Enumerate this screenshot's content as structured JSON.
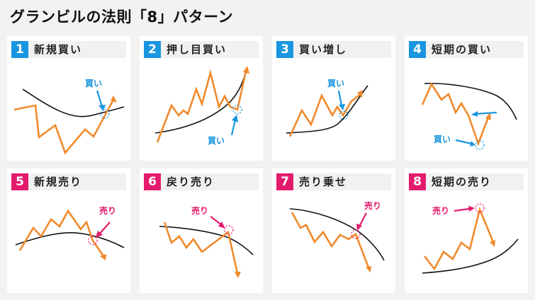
{
  "title": "グランビルの法則「8」パターン",
  "colors": {
    "buy": "#1a96e0",
    "sell": "#e31b6d",
    "price": "#f08a2c",
    "ma": "#111111"
  },
  "patterns": [
    {
      "number": "1",
      "label": "新規買い",
      "kind": "buy",
      "annotation": "買い"
    },
    {
      "number": "2",
      "label": "押し目買い",
      "kind": "buy",
      "annotation": "買い"
    },
    {
      "number": "3",
      "label": "買い増し",
      "kind": "buy",
      "annotation": "買い"
    },
    {
      "number": "4",
      "label": "短期の買い",
      "kind": "buy",
      "annotation": "買い"
    },
    {
      "number": "5",
      "label": "新規売り",
      "kind": "sell",
      "annotation": "売り"
    },
    {
      "number": "6",
      "label": "戻り売り",
      "kind": "sell",
      "annotation": "売り"
    },
    {
      "number": "7",
      "label": "売り乗せ",
      "kind": "sell",
      "annotation": "売り"
    },
    {
      "number": "8",
      "label": "短期の売り",
      "kind": "sell",
      "annotation": "売り"
    }
  ]
}
